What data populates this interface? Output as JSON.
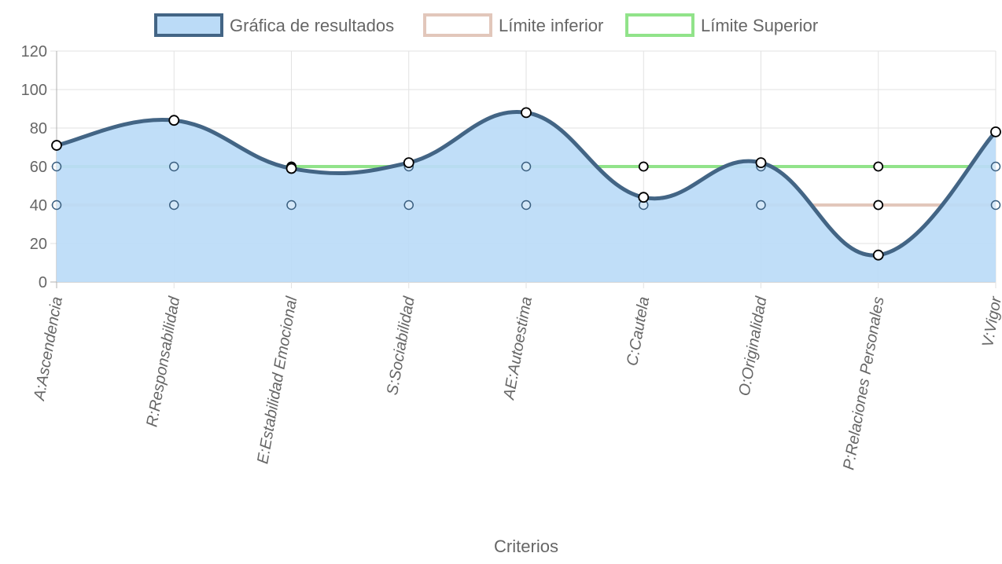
{
  "chart_data": {
    "type": "line",
    "xlabel": "Criterios",
    "ylabel": "",
    "ylim": [
      0,
      120
    ],
    "yticks": [
      0,
      20,
      40,
      60,
      80,
      100,
      120
    ],
    "grid": true,
    "legend_position": "top",
    "categories": [
      "A:Ascendencia",
      "R:Responsabilidad",
      "E:Estabilidad Emocional",
      "S:Sociabilidad",
      "AE:Autoestima",
      "C:Cautela",
      "O:Originalidad",
      "P:Relaciones Personales",
      "V:Vigor"
    ],
    "series": [
      {
        "name": "Gráfica de resultados",
        "values": [
          71,
          84,
          59,
          62,
          88,
          44,
          62,
          14,
          78
        ],
        "color": "#436585",
        "fill": "#bbdbf7"
      },
      {
        "name": "Límite inferior",
        "values": [
          40,
          40,
          40,
          40,
          40,
          40,
          40,
          40,
          40
        ],
        "color": "#e2c7bb"
      },
      {
        "name": "Límite Superior",
        "values": [
          60,
          60,
          60,
          60,
          60,
          60,
          60,
          60,
          60
        ],
        "color": "#91e38a"
      }
    ]
  }
}
